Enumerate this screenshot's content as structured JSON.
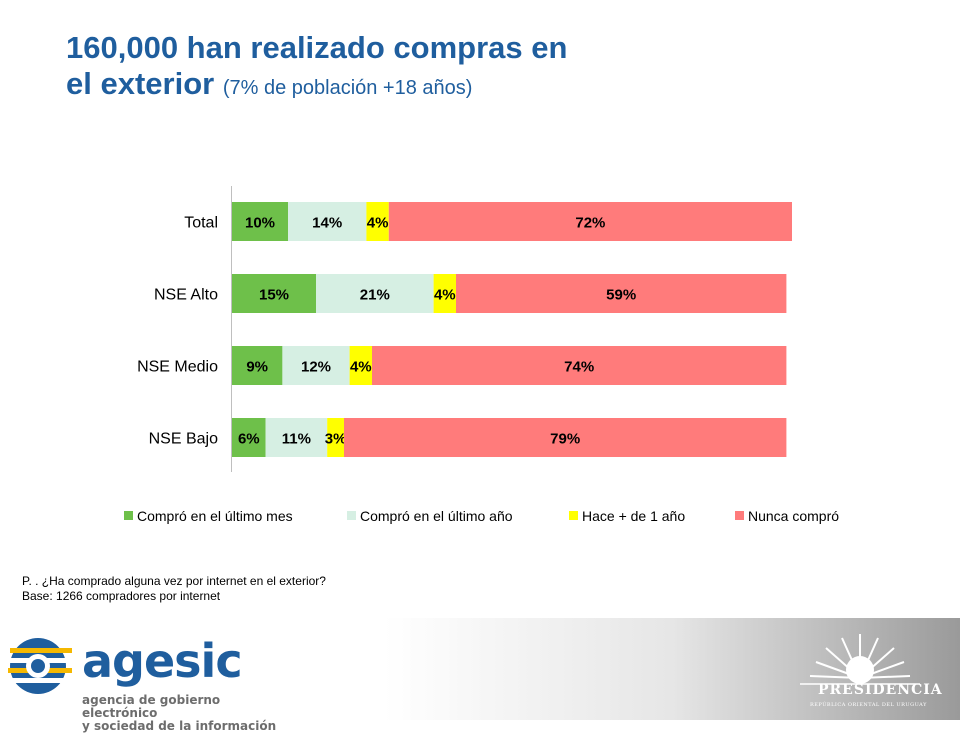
{
  "title": {
    "line1": "160,000 han realizado compras en",
    "line2_main": "el exterior",
    "line2_sub": "(7% de población +18 años)"
  },
  "chart_data": {
    "type": "bar",
    "orientation": "horizontal",
    "stacked": true,
    "categories": [
      "Total",
      "NSE Alto",
      "NSE Medio",
      "NSE Bajo"
    ],
    "series": [
      {
        "name": "Compró en el último mes",
        "values": [
          10,
          15,
          9,
          6
        ],
        "labels": [
          "10%",
          "15%",
          "9%",
          "6%"
        ],
        "color": "#6ec04a"
      },
      {
        "name": "Compró en el último año",
        "values": [
          14,
          21,
          12,
          11
        ],
        "labels": [
          "14%",
          "21%",
          "12%",
          "11%"
        ],
        "color": "#d6efe3"
      },
      {
        "name": "Hace + de 1 año",
        "values": [
          4,
          4,
          4,
          3
        ],
        "labels": [
          "4%",
          "4%",
          "4%",
          "3%"
        ],
        "color": "#ffff00"
      },
      {
        "name": "Nunca compró",
        "values": [
          72,
          59,
          74,
          79
        ],
        "labels": [
          "72%",
          "59%",
          "74%",
          "79%"
        ],
        "color": "#ff7b7b"
      }
    ],
    "xlim": [
      0,
      100
    ],
    "legend_position": "bottom",
    "grid": false
  },
  "footnote": {
    "question": "P. . ¿Ha comprado alguna vez por internet en el exterior?",
    "base": "Base: 1266 compradores por internet"
  },
  "footer": {
    "agesic_name": "agesic",
    "agesic_tagline_1": "agencia de gobierno electrónico",
    "agesic_tagline_2": "y sociedad de la información",
    "presidencia_name": "PRESIDENCIA",
    "presidencia_sub": "REPÚBLICA ORIENTAL DEL URUGUAY"
  },
  "colors": {
    "title": "#1f5e9e",
    "brand_blue": "#1f5e9e",
    "brand_yellow": "#f5b800"
  }
}
